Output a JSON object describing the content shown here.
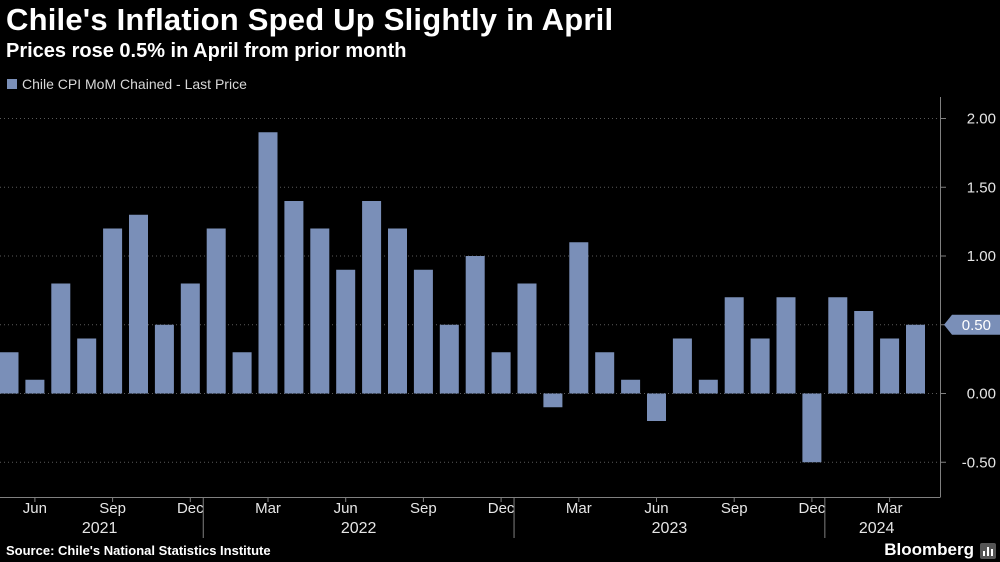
{
  "header": {
    "title": "Chile's Inflation Sped Up Slightly in April",
    "subtitle": "Prices rose 0.5% in April from prior month"
  },
  "legend": {
    "label": "Chile CPI MoM Chained - Last Price"
  },
  "footer": {
    "source": "Source: Chile's National Statistics Institute",
    "brand": "Bloomberg"
  },
  "colors": {
    "bar": "#7a8fb8",
    "background": "#000000",
    "axis": "#808080"
  },
  "chart_data": {
    "type": "bar",
    "title": "Chile's Inflation Sped Up Slightly in April",
    "series": [
      {
        "name": "Chile CPI MoM Chained - Last Price",
        "values": [
          0.3,
          0.1,
          0.8,
          0.4,
          1.2,
          1.3,
          0.5,
          0.8,
          1.2,
          0.3,
          1.9,
          1.4,
          1.2,
          0.9,
          1.4,
          1.2,
          0.9,
          0.5,
          1.0,
          0.3,
          0.8,
          -0.1,
          1.1,
          0.3,
          0.1,
          -0.2,
          0.4,
          0.1,
          0.7,
          0.4,
          0.7,
          -0.5,
          0.7,
          0.6,
          0.4,
          0.5
        ]
      }
    ],
    "categories": [
      "May 2021",
      "Jun 2021",
      "Jul 2021",
      "Aug 2021",
      "Sep 2021",
      "Oct 2021",
      "Nov 2021",
      "Dec 2021",
      "Jan 2022",
      "Feb 2022",
      "Mar 2022",
      "Apr 2022",
      "May 2022",
      "Jun 2022",
      "Jul 2022",
      "Aug 2022",
      "Sep 2022",
      "Oct 2022",
      "Nov 2022",
      "Dec 2022",
      "Jan 2023",
      "Feb 2023",
      "Mar 2023",
      "Apr 2023",
      "May 2023",
      "Jun 2023",
      "Jul 2023",
      "Aug 2023",
      "Sep 2023",
      "Oct 2023",
      "Nov 2023",
      "Dec 2023",
      "Jan 2024",
      "Feb 2024",
      "Mar 2024",
      "Apr 2024"
    ],
    "month_ticks": [
      {
        "index": 1,
        "label": "Jun"
      },
      {
        "index": 4,
        "label": "Sep"
      },
      {
        "index": 7,
        "label": "Dec"
      },
      {
        "index": 10,
        "label": "Mar"
      },
      {
        "index": 13,
        "label": "Jun"
      },
      {
        "index": 16,
        "label": "Sep"
      },
      {
        "index": 19,
        "label": "Dec"
      },
      {
        "index": 22,
        "label": "Mar"
      },
      {
        "index": 25,
        "label": "Jun"
      },
      {
        "index": 28,
        "label": "Sep"
      },
      {
        "index": 31,
        "label": "Dec"
      },
      {
        "index": 34,
        "label": "Mar"
      }
    ],
    "years": [
      {
        "label": "2021",
        "start": 0,
        "end": 7
      },
      {
        "label": "2022",
        "start": 8,
        "end": 19
      },
      {
        "label": "2023",
        "start": 20,
        "end": 31
      },
      {
        "label": "2024",
        "start": 32,
        "end": 35
      }
    ],
    "y_ticks": [
      2.0,
      1.5,
      1.0,
      0.5,
      0.0,
      -0.5
    ],
    "y_tick_labels": [
      "2.00",
      "1.50",
      "1.00",
      "0.50",
      "0.00",
      "-0.50"
    ],
    "ylim": [
      -0.52,
      2.0
    ],
    "last_value_label": "0.50",
    "xlabel": "",
    "ylabel": "",
    "grid": true,
    "legend_position": "top-left"
  }
}
